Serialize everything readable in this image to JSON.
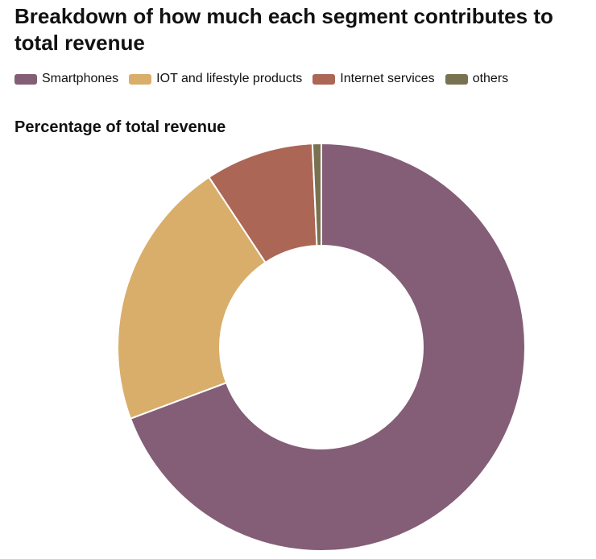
{
  "chart_data": {
    "type": "pie",
    "title": "Breakdown of how much each segment contributes to total revenue",
    "subtitle": "Percentage of total revenue",
    "legend_position": "top-left",
    "donut": true,
    "categories": [
      "Smartphones",
      "IOT and lifestyle products",
      "Internet services",
      "others"
    ],
    "values": [
      69.3,
      21.4,
      8.6,
      0.7
    ],
    "colors": [
      "#845d76",
      "#d8ae6a",
      "#ab6656",
      "#787250"
    ]
  }
}
